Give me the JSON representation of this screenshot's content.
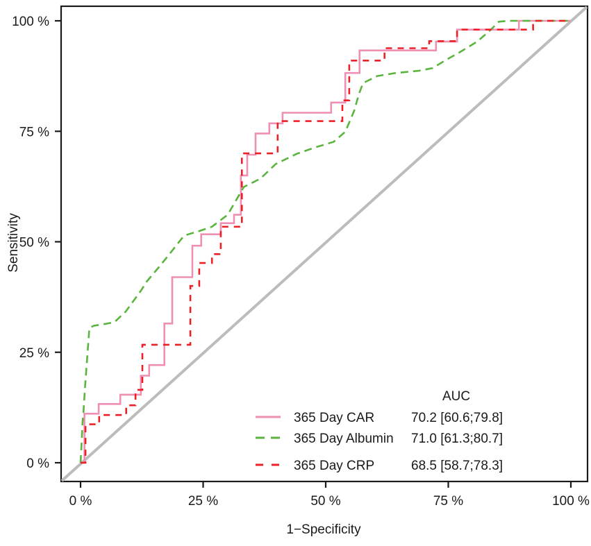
{
  "chart_data": {
    "type": "line",
    "title": "",
    "xlabel": "1−Specificity",
    "ylabel": "Sensitivity",
    "xlim": [
      0,
      100
    ],
    "ylim": [
      0,
      100
    ],
    "grid": false,
    "x_ticks": [
      0,
      25,
      50,
      75,
      100
    ],
    "y_ticks": [
      0,
      25,
      50,
      75,
      100
    ],
    "x_tick_labels": [
      "0 %",
      "25 %",
      "50 %",
      "75 %",
      "100 %"
    ],
    "y_tick_labels": [
      "0 %",
      "25 %",
      "50 %",
      "75 %",
      "100 %"
    ],
    "diagonal_reference_line": true,
    "reference_line_color": "#bcbcbc",
    "axis_color": "#1a1a1a",
    "legend": {
      "position": "bottom-right",
      "header": "AUC"
    },
    "series": [
      {
        "name": "365 Day CAR",
        "auc": 70.2,
        "auc_ci": [
          60.6,
          79.8
        ],
        "auc_label": "70.2 [60.6;79.8]",
        "color": "#ee8fb3",
        "style": "solid",
        "shape": "step",
        "points": [
          [
            0,
            0
          ],
          [
            0.8,
            0
          ],
          [
            0.8,
            11.1
          ],
          [
            3.7,
            11.1
          ],
          [
            3.7,
            13.3
          ],
          [
            8.1,
            13.3
          ],
          [
            8.1,
            15.4
          ],
          [
            12.3,
            15.4
          ],
          [
            12.3,
            19.7
          ],
          [
            14,
            19.7
          ],
          [
            14,
            22.1
          ],
          [
            17.1,
            22.1
          ],
          [
            17.1,
            31.5
          ],
          [
            18.7,
            31.5
          ],
          [
            18.7,
            42
          ],
          [
            22.8,
            42
          ],
          [
            22.8,
            49.1
          ],
          [
            24.6,
            49.1
          ],
          [
            24.6,
            51.7
          ],
          [
            28.6,
            51.7
          ],
          [
            28.6,
            54.2
          ],
          [
            31.3,
            54.2
          ],
          [
            31.3,
            56.1
          ],
          [
            32.7,
            56.1
          ],
          [
            32.7,
            65
          ],
          [
            34,
            65
          ],
          [
            34,
            69.7
          ],
          [
            35.7,
            69.7
          ],
          [
            35.7,
            74.5
          ],
          [
            38.5,
            74.5
          ],
          [
            38.5,
            76.8
          ],
          [
            41.2,
            76.8
          ],
          [
            41.2,
            79.2
          ],
          [
            51.1,
            79.2
          ],
          [
            51.1,
            81.5
          ],
          [
            54,
            81.5
          ],
          [
            54,
            88.2
          ],
          [
            56.9,
            88.2
          ],
          [
            56.9,
            93.3
          ],
          [
            72.5,
            93.3
          ],
          [
            72.5,
            95.3
          ],
          [
            76.8,
            95.3
          ],
          [
            76.8,
            98
          ],
          [
            89.4,
            98
          ],
          [
            89.4,
            100
          ],
          [
            100,
            100
          ]
        ]
      },
      {
        "name": "365 Day Albumin",
        "auc": 71.0,
        "auc_ci": [
          61.3,
          80.7
        ],
        "auc_label": "71.0 [61.3;80.7]",
        "color": "#5ab43e",
        "style": "dashed",
        "shape": "smooth",
        "points": [
          [
            0,
            0
          ],
          [
            0.2,
            4
          ],
          [
            0.4,
            9
          ],
          [
            0.6,
            11.5
          ],
          [
            0.9,
            17
          ],
          [
            1.3,
            23
          ],
          [
            1.8,
            30.5
          ],
          [
            2.7,
            31
          ],
          [
            4.5,
            31.3
          ],
          [
            6.9,
            31.8
          ],
          [
            9.2,
            34.2
          ],
          [
            12.3,
            38.9
          ],
          [
            13.5,
            41
          ],
          [
            16.3,
            44.7
          ],
          [
            18.7,
            48
          ],
          [
            21.1,
            51.4
          ],
          [
            24.4,
            52.5
          ],
          [
            26.8,
            53.4
          ],
          [
            30,
            56.1
          ],
          [
            33.3,
            62.4
          ],
          [
            36.7,
            64.3
          ],
          [
            39.8,
            67.6
          ],
          [
            44.1,
            69.9
          ],
          [
            47.7,
            71.3
          ],
          [
            51.6,
            72.6
          ],
          [
            54,
            74.9
          ],
          [
            55.8,
            79.6
          ],
          [
            56.8,
            83.5
          ],
          [
            57.6,
            85.9
          ],
          [
            60.5,
            87.5
          ],
          [
            64.3,
            88.2
          ],
          [
            69,
            88.7
          ],
          [
            71.8,
            89.3
          ],
          [
            74.6,
            91.2
          ],
          [
            77.5,
            93
          ],
          [
            80.9,
            95.3
          ],
          [
            83.7,
            98
          ],
          [
            85.3,
            99.8
          ],
          [
            87.4,
            100
          ],
          [
            100,
            100
          ]
        ]
      },
      {
        "name": "365 Day CRP",
        "auc": 68.5,
        "auc_ci": [
          58.7,
          78.3
        ],
        "auc_label": "68.5 [58.7;78.3]",
        "color": "#ec2127",
        "style": "dashed",
        "shape": "step",
        "points": [
          [
            0,
            0
          ],
          [
            1,
            0
          ],
          [
            1,
            8.7
          ],
          [
            3.8,
            8.7
          ],
          [
            3.8,
            10.8
          ],
          [
            9.3,
            10.8
          ],
          [
            9.3,
            13
          ],
          [
            11.2,
            13
          ],
          [
            11.2,
            16.5
          ],
          [
            12.6,
            16.5
          ],
          [
            12.6,
            26.7
          ],
          [
            22.4,
            26.7
          ],
          [
            22.4,
            40
          ],
          [
            24.2,
            40
          ],
          [
            24.2,
            45.2
          ],
          [
            26.8,
            45.2
          ],
          [
            26.8,
            47.2
          ],
          [
            28.6,
            47.2
          ],
          [
            28.6,
            53.4
          ],
          [
            32.9,
            53.4
          ],
          [
            32.9,
            70
          ],
          [
            40.2,
            70
          ],
          [
            40.2,
            77.3
          ],
          [
            53.4,
            77.3
          ],
          [
            53.4,
            82
          ],
          [
            54.8,
            82
          ],
          [
            54.8,
            91
          ],
          [
            62,
            91
          ],
          [
            62,
            93.8
          ],
          [
            71.1,
            93.8
          ],
          [
            71.1,
            95.4
          ],
          [
            76.8,
            95.4
          ],
          [
            76.8,
            98
          ],
          [
            92.3,
            98
          ],
          [
            92.3,
            100
          ],
          [
            100,
            100
          ]
        ]
      }
    ]
  }
}
